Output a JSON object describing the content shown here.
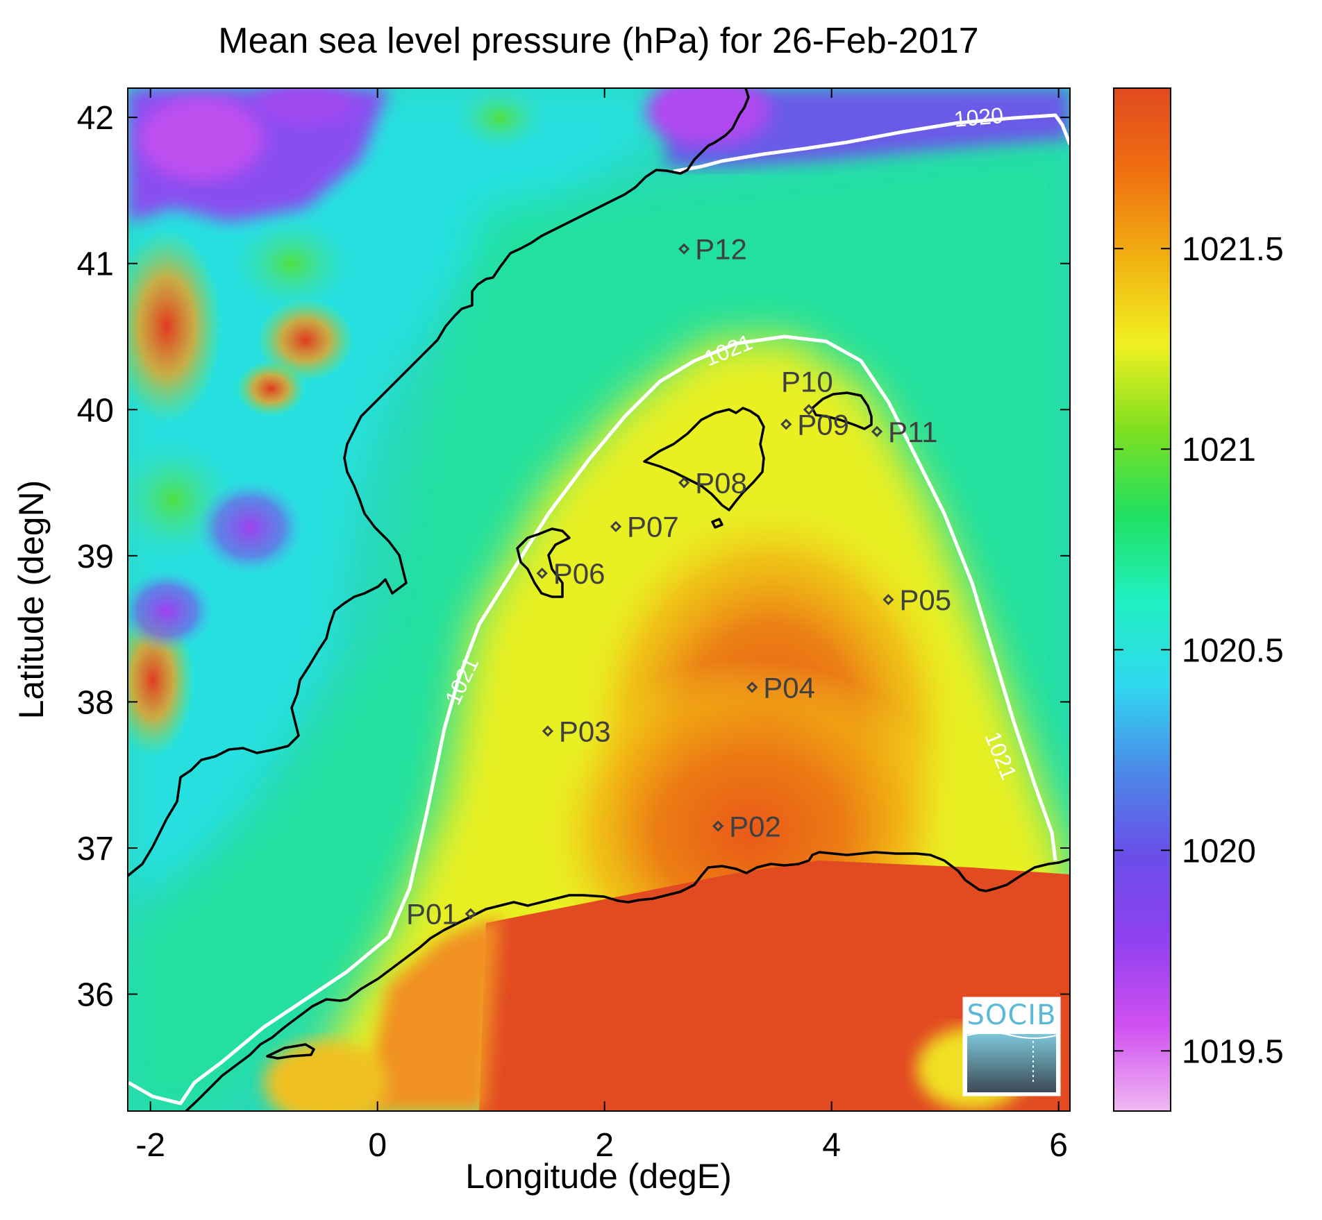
{
  "title": "Mean sea level pressure (hPa) for 26-Feb-2017",
  "xlabel": "Longitude (degE)",
  "ylabel": "Latitude (degN)",
  "xlim": [
    -2.2,
    6.1
  ],
  "ylim": [
    35.2,
    42.2
  ],
  "xticks": [
    "-2",
    "0",
    "2",
    "4",
    "6"
  ],
  "yticks": [
    "36",
    "37",
    "38",
    "39",
    "40",
    "41",
    "42"
  ],
  "colorbar": {
    "range": [
      1019.35,
      1021.9
    ],
    "ticks": [
      "1019.5",
      "1020",
      "1020.5",
      "1021",
      "1021.5"
    ],
    "colormap": [
      "#f0b8f0",
      "#d050f0",
      "#9040f0",
      "#6a4ee8",
      "#4a8ae8",
      "#30d8f0",
      "#20f0c0",
      "#20e060",
      "#80e020",
      "#f0f020",
      "#f0b010",
      "#f07010",
      "#e04a20"
    ]
  },
  "contours": [
    {
      "level": 1020,
      "label": "1020"
    },
    {
      "level": 1021,
      "label": "1021"
    }
  ],
  "stations": [
    {
      "name": "P01",
      "lon": 0.82,
      "lat": 36.55
    },
    {
      "name": "P02",
      "lon": 3.0,
      "lat": 37.15
    },
    {
      "name": "P03",
      "lon": 1.5,
      "lat": 37.8
    },
    {
      "name": "P04",
      "lon": 3.3,
      "lat": 38.1
    },
    {
      "name": "P05",
      "lon": 4.5,
      "lat": 38.7
    },
    {
      "name": "P06",
      "lon": 1.45,
      "lat": 38.88
    },
    {
      "name": "P07",
      "lon": 2.1,
      "lat": 39.2
    },
    {
      "name": "P08",
      "lon": 2.7,
      "lat": 39.5
    },
    {
      "name": "P09",
      "lon": 3.6,
      "lat": 39.9
    },
    {
      "name": "P10",
      "lon": 3.8,
      "lat": 40.0
    },
    {
      "name": "P11",
      "lon": 4.4,
      "lat": 39.85
    },
    {
      "name": "P12",
      "lon": 2.7,
      "lat": 41.1
    }
  ],
  "logo": {
    "text": "SOCIB"
  }
}
